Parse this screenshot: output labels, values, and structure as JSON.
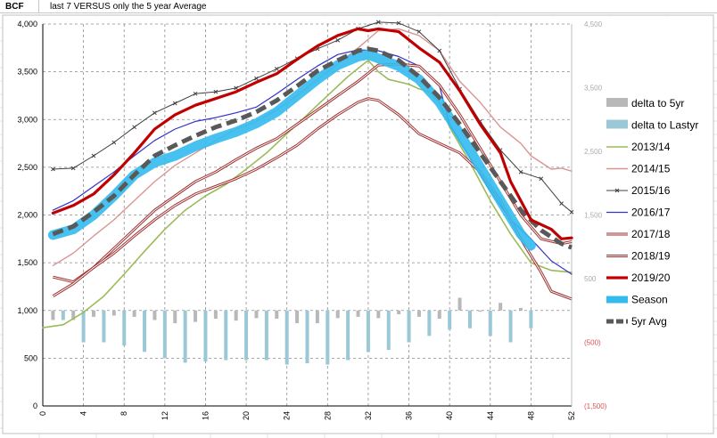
{
  "sheet": {
    "cell_a": "BCF",
    "cell_b": "last 7 VERSUS only the 5 year Average"
  },
  "chart_data": {
    "type": "line",
    "title": "last 7 VERSUS only the 5 year Average",
    "xlabel": "",
    "ylabel": "BCF",
    "xlim": [
      0,
      52
    ],
    "ylim": [
      0,
      4000
    ],
    "y2lim": [
      -1500,
      4500
    ],
    "xticks": [
      0,
      4,
      8,
      12,
      16,
      20,
      24,
      28,
      32,
      36,
      40,
      44,
      48,
      52
    ],
    "xtick_labels": [
      "0",
      "4",
      "8",
      "12",
      "16",
      "20",
      "24",
      "28",
      "32",
      "36",
      "40",
      "44",
      "48",
      "52"
    ],
    "yticks": [
      0,
      500,
      1000,
      1500,
      2000,
      2500,
      3000,
      3500,
      4000
    ],
    "ytick_labels": [
      "0",
      "500",
      "1,000",
      "1,500",
      "2,000",
      "2,500",
      "3,000",
      "3,500",
      "4,000"
    ],
    "y2ticks": [
      4500,
      3500,
      2500,
      1500,
      500,
      -500,
      -1500
    ],
    "y2tick_labels": [
      "4,500",
      "3,500",
      "2,500",
      "1,500",
      "500",
      "(500)",
      "(1,500)"
    ],
    "grid": true,
    "legend_position": "right",
    "series": [
      {
        "name": "delta to 5yr",
        "kind": "bar",
        "axis": "secondary",
        "color": "#b8b8b8",
        "x": [
          1,
          3,
          5,
          7,
          9,
          11,
          13,
          15,
          17,
          19,
          21,
          23,
          25,
          27,
          29,
          31,
          33,
          35,
          37,
          39,
          41,
          43,
          45,
          47
        ],
        "values": [
          -150,
          -150,
          -100,
          -80,
          -100,
          -150,
          -200,
          -180,
          -130,
          -160,
          -120,
          -130,
          -200,
          -200,
          -120,
          -100,
          -120,
          -60,
          -100,
          -130,
          200,
          -20,
          120,
          40
        ]
      },
      {
        "name": "delta to Lastyr",
        "kind": "bar",
        "axis": "secondary",
        "color": "#9ac8d6",
        "x": [
          2,
          4,
          6,
          8,
          10,
          12,
          14,
          16,
          18,
          20,
          22,
          24,
          26,
          28,
          30,
          32,
          34,
          36,
          38,
          40,
          42,
          44,
          46,
          48
        ],
        "values": [
          -150,
          -500,
          -500,
          -550,
          -650,
          -750,
          -820,
          -800,
          -780,
          -780,
          -780,
          -850,
          -830,
          -850,
          -780,
          -650,
          -620,
          -500,
          -400,
          -300,
          -280,
          -400,
          -500,
          -280
        ]
      },
      {
        "name": "2013/14",
        "color": "#9bbb59",
        "width": 1.6,
        "points": [
          [
            0,
            820
          ],
          [
            2,
            850
          ],
          [
            4,
            980
          ],
          [
            6,
            1150
          ],
          [
            8,
            1380
          ],
          [
            10,
            1620
          ],
          [
            12,
            1850
          ],
          [
            14,
            2050
          ],
          [
            16,
            2200
          ],
          [
            18,
            2320
          ],
          [
            20,
            2480
          ],
          [
            22,
            2650
          ],
          [
            24,
            2850
          ],
          [
            26,
            3050
          ],
          [
            28,
            3250
          ],
          [
            30,
            3450
          ],
          [
            32,
            3620
          ],
          [
            33,
            3500
          ],
          [
            34,
            3420
          ],
          [
            36,
            3370
          ],
          [
            37,
            3320
          ],
          [
            38,
            3290
          ],
          [
            39,
            3180
          ],
          [
            40,
            2920
          ],
          [
            42,
            2550
          ],
          [
            44,
            2150
          ],
          [
            46,
            1800
          ],
          [
            48,
            1500
          ],
          [
            50,
            1420
          ],
          [
            52,
            1400
          ]
        ]
      },
      {
        "name": "2014/15",
        "color": "#d99694",
        "width": 1.4,
        "points": [
          [
            1,
            1470
          ],
          [
            3,
            1600
          ],
          [
            5,
            1780
          ],
          [
            7,
            1950
          ],
          [
            9,
            2150
          ],
          [
            11,
            2350
          ],
          [
            13,
            2520
          ],
          [
            15,
            2650
          ],
          [
            17,
            2780
          ],
          [
            19,
            2900
          ],
          [
            21,
            2980
          ],
          [
            23,
            3100
          ],
          [
            25,
            3250
          ],
          [
            27,
            3420
          ],
          [
            29,
            3580
          ],
          [
            31,
            3750
          ],
          [
            33,
            3930
          ],
          [
            35,
            3950
          ],
          [
            37,
            3880
          ],
          [
            39,
            3720
          ],
          [
            41,
            3400
          ],
          [
            43,
            3180
          ],
          [
            45,
            2920
          ],
          [
            47,
            2750
          ],
          [
            48,
            2620
          ],
          [
            50,
            2480
          ],
          [
            51,
            2490
          ],
          [
            52,
            2460
          ]
        ]
      },
      {
        "name": "2015/16",
        "color": "#404040",
        "width": 1.0,
        "marker": "x",
        "points": [
          [
            1,
            2480
          ],
          [
            3,
            2490
          ],
          [
            5,
            2620
          ],
          [
            7,
            2760
          ],
          [
            9,
            2920
          ],
          [
            11,
            3070
          ],
          [
            13,
            3170
          ],
          [
            15,
            3270
          ],
          [
            17,
            3290
          ],
          [
            19,
            3330
          ],
          [
            21,
            3430
          ],
          [
            23,
            3530
          ],
          [
            25,
            3640
          ],
          [
            27,
            3740
          ],
          [
            29,
            3830
          ],
          [
            31,
            3950
          ],
          [
            33,
            4020
          ],
          [
            35,
            4010
          ],
          [
            37,
            3920
          ],
          [
            39,
            3720
          ],
          [
            41,
            3320
          ],
          [
            43,
            2980
          ],
          [
            45,
            2680
          ],
          [
            47,
            2450
          ],
          [
            49,
            2380
          ],
          [
            51,
            2120
          ],
          [
            52,
            2030
          ]
        ]
      },
      {
        "name": "2016/17",
        "color": "#3333cc",
        "width": 1.2,
        "points": [
          [
            1,
            2050
          ],
          [
            3,
            2150
          ],
          [
            5,
            2300
          ],
          [
            7,
            2450
          ],
          [
            9,
            2620
          ],
          [
            11,
            2780
          ],
          [
            13,
            2900
          ],
          [
            15,
            2980
          ],
          [
            17,
            3020
          ],
          [
            19,
            3070
          ],
          [
            21,
            3130
          ],
          [
            23,
            3270
          ],
          [
            25,
            3420
          ],
          [
            27,
            3560
          ],
          [
            29,
            3680
          ],
          [
            31,
            3730
          ],
          [
            33,
            3720
          ],
          [
            35,
            3660
          ],
          [
            37,
            3560
          ],
          [
            39,
            3350
          ],
          [
            40,
            2950
          ],
          [
            42,
            2600
          ],
          [
            44,
            2250
          ],
          [
            46,
            1950
          ],
          [
            48,
            1750
          ],
          [
            50,
            1520
          ],
          [
            52,
            1380
          ]
        ]
      },
      {
        "name": "2017/18",
        "color": "#a03030",
        "width": 1.0,
        "double": true,
        "points": [
          [
            1,
            1350
          ],
          [
            3,
            1300
          ],
          [
            5,
            1450
          ],
          [
            7,
            1650
          ],
          [
            9,
            1850
          ],
          [
            11,
            2050
          ],
          [
            13,
            2200
          ],
          [
            15,
            2350
          ],
          [
            17,
            2450
          ],
          [
            19,
            2580
          ],
          [
            21,
            2700
          ],
          [
            23,
            2800
          ],
          [
            25,
            2950
          ],
          [
            27,
            3100
          ],
          [
            29,
            3250
          ],
          [
            31,
            3400
          ],
          [
            33,
            3570
          ],
          [
            35,
            3580
          ],
          [
            37,
            3560
          ],
          [
            39,
            3360
          ],
          [
            41,
            3050
          ],
          [
            43,
            2700
          ],
          [
            45,
            2350
          ],
          [
            47,
            2000
          ],
          [
            49,
            1750
          ],
          [
            51,
            1700
          ],
          [
            52,
            1720
          ]
        ]
      },
      {
        "name": "2018/19",
        "color": "#a03030",
        "width": 1.0,
        "double": true,
        "points": [
          [
            1,
            1150
          ],
          [
            3,
            1280
          ],
          [
            5,
            1450
          ],
          [
            7,
            1600
          ],
          [
            9,
            1780
          ],
          [
            11,
            1950
          ],
          [
            13,
            2100
          ],
          [
            15,
            2220
          ],
          [
            17,
            2300
          ],
          [
            19,
            2380
          ],
          [
            21,
            2480
          ],
          [
            23,
            2600
          ],
          [
            25,
            2730
          ],
          [
            27,
            2900
          ],
          [
            29,
            3050
          ],
          [
            31,
            3180
          ],
          [
            32,
            3220
          ],
          [
            33,
            3200
          ],
          [
            35,
            3050
          ],
          [
            37,
            2850
          ],
          [
            39,
            2750
          ],
          [
            41,
            2650
          ],
          [
            43,
            2450
          ],
          [
            45,
            2150
          ],
          [
            47,
            1750
          ],
          [
            49,
            1400
          ],
          [
            50,
            1200
          ],
          [
            52,
            1120
          ]
        ]
      },
      {
        "name": "2019/20",
        "color": "#c00000",
        "width": 3.2,
        "points": [
          [
            1,
            2020
          ],
          [
            3,
            2100
          ],
          [
            5,
            2220
          ],
          [
            7,
            2420
          ],
          [
            9,
            2650
          ],
          [
            11,
            2900
          ],
          [
            13,
            3050
          ],
          [
            15,
            3150
          ],
          [
            17,
            3220
          ],
          [
            19,
            3290
          ],
          [
            21,
            3390
          ],
          [
            23,
            3480
          ],
          [
            25,
            3630
          ],
          [
            27,
            3770
          ],
          [
            29,
            3880
          ],
          [
            31,
            3950
          ],
          [
            32,
            3930
          ],
          [
            33,
            3950
          ],
          [
            35,
            3920
          ],
          [
            37,
            3750
          ],
          [
            39,
            3600
          ],
          [
            41,
            3300
          ],
          [
            43,
            2950
          ],
          [
            45,
            2650
          ],
          [
            46,
            2350
          ],
          [
            48,
            1950
          ],
          [
            50,
            1850
          ],
          [
            51,
            1750
          ],
          [
            52,
            1760
          ]
        ]
      },
      {
        "name": "Season",
        "color": "#33bbee",
        "width": 11,
        "points": [
          [
            1,
            1790
          ],
          [
            3,
            1850
          ],
          [
            5,
            2000
          ],
          [
            7,
            2200
          ],
          [
            9,
            2420
          ],
          [
            11,
            2550
          ],
          [
            13,
            2620
          ],
          [
            15,
            2720
          ],
          [
            17,
            2800
          ],
          [
            19,
            2870
          ],
          [
            21,
            2960
          ],
          [
            23,
            3080
          ],
          [
            25,
            3250
          ],
          [
            27,
            3420
          ],
          [
            29,
            3570
          ],
          [
            31,
            3660
          ],
          [
            32,
            3680
          ],
          [
            33,
            3640
          ],
          [
            35,
            3560
          ],
          [
            37,
            3420
          ],
          [
            39,
            3180
          ],
          [
            41,
            2850
          ],
          [
            43,
            2500
          ],
          [
            45,
            2150
          ],
          [
            47,
            1800
          ],
          [
            48,
            1680
          ]
        ]
      },
      {
        "name": "5yr Avg",
        "color": "#595959",
        "width": 5,
        "dash": "12 6",
        "points": [
          [
            1,
            1800
          ],
          [
            3,
            1880
          ],
          [
            5,
            2030
          ],
          [
            7,
            2200
          ],
          [
            9,
            2420
          ],
          [
            11,
            2620
          ],
          [
            13,
            2730
          ],
          [
            15,
            2830
          ],
          [
            17,
            2920
          ],
          [
            19,
            2990
          ],
          [
            21,
            3080
          ],
          [
            23,
            3200
          ],
          [
            25,
            3350
          ],
          [
            27,
            3510
          ],
          [
            29,
            3620
          ],
          [
            31,
            3720
          ],
          [
            32,
            3740
          ],
          [
            33,
            3720
          ],
          [
            35,
            3620
          ],
          [
            37,
            3450
          ],
          [
            39,
            3230
          ],
          [
            41,
            2950
          ],
          [
            43,
            2650
          ],
          [
            45,
            2350
          ],
          [
            47,
            2050
          ],
          [
            49,
            1840
          ],
          [
            51,
            1700
          ],
          [
            52,
            1660
          ]
        ]
      }
    ],
    "legend": [
      "delta to 5yr",
      "delta to Lastyr",
      "2013/14",
      "2014/15",
      "2015/16",
      "2016/17",
      "2017/18",
      "2018/19",
      "2019/20",
      "Season",
      "5yr Avg"
    ]
  }
}
